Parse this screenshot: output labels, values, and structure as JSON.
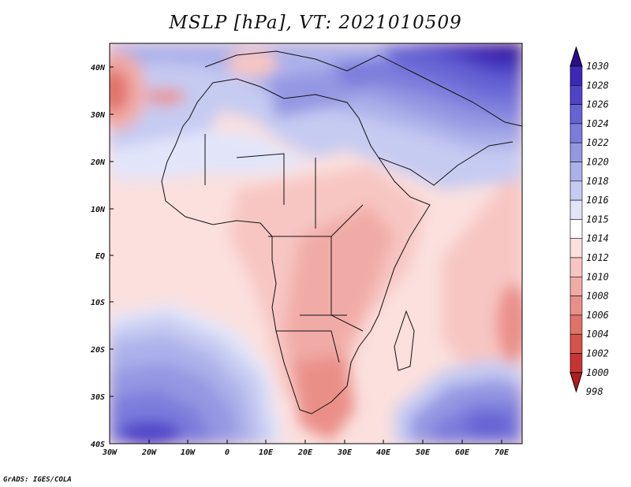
{
  "title": "MSLP [hPa], VT: 2021010509",
  "credit": "GrADS: IGES/COLA",
  "lat_ticks": [
    "40N",
    "30N",
    "20N",
    "10N",
    "EQ",
    "10S",
    "20S",
    "30S",
    "40S"
  ],
  "lon_ticks": [
    "30W",
    "20W",
    "10W",
    "0",
    "10E",
    "20E",
    "30E",
    "40E",
    "50E",
    "60E",
    "70E"
  ],
  "colorbar": {
    "levels": [
      "1030",
      "1028",
      "1026",
      "1024",
      "1022",
      "1020",
      "1018",
      "1016",
      "1015",
      "1014",
      "1012",
      "1010",
      "1008",
      "1006",
      "1004",
      "1002",
      "1000",
      "998"
    ],
    "colors": [
      "#2a0e8e",
      "#3c28b4",
      "#4f44c8",
      "#6664d4",
      "#7b7cdc",
      "#9497e2",
      "#acb1ea",
      "#c6cbf2",
      "#e2e5fa",
      "#ffffff",
      "#fbe0de",
      "#f7c6c2",
      "#f1aba6",
      "#ea8f88",
      "#e1716a",
      "#d5524d",
      "#c73433",
      "#b31b21"
    ]
  }
}
